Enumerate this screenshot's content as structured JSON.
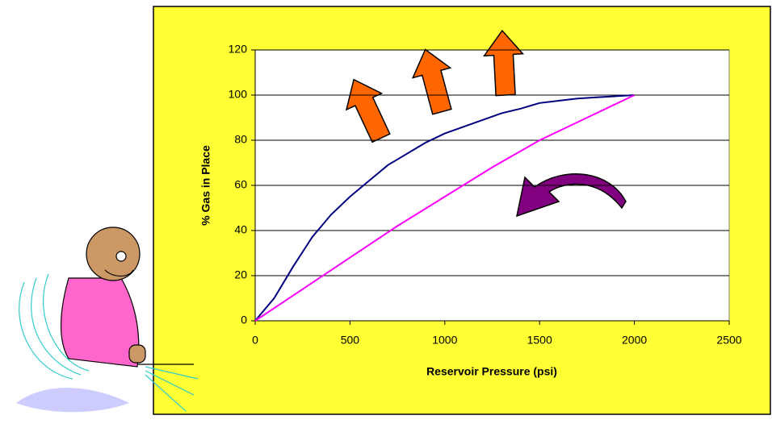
{
  "chart_data": {
    "type": "line",
    "x_label": "Reservoir Pressure (psi)",
    "y_label": "% Gas in Place",
    "series": [
      {
        "color": "#000080",
        "x": [
          0,
          100,
          200,
          300,
          400,
          500,
          600,
          700,
          800,
          900,
          1000,
          1100,
          1200,
          1300,
          1400,
          1500,
          1600,
          1700,
          1800,
          2000
        ],
        "values": [
          0,
          10,
          24,
          37,
          47,
          55,
          62,
          69,
          74,
          79,
          83,
          86,
          89,
          92,
          94,
          96.5,
          97.5,
          98.5,
          99,
          100
        ]
      },
      {
        "color": "#ff00ff",
        "x": [
          0,
          250,
          500,
          750,
          1000,
          1250,
          1500,
          1750,
          2000
        ],
        "values": [
          0,
          14,
          28,
          42,
          55,
          68,
          80,
          90,
          100
        ]
      }
    ],
    "xlim": [
      0,
      2500
    ],
    "xticks": [
      0,
      500,
      1000,
      1500,
      2000,
      2500
    ],
    "ylim": [
      0,
      120
    ],
    "yticks": [
      0,
      20,
      40,
      60,
      80,
      100,
      120
    ],
    "grid": true
  }
}
